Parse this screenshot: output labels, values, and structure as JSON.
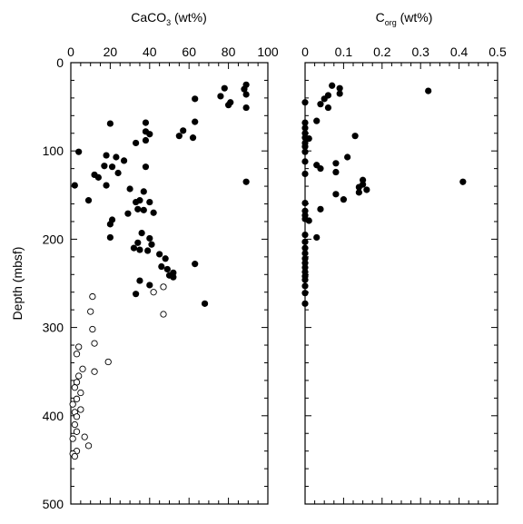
{
  "chart_data": [
    {
      "type": "scatter",
      "title_main": "CaCO",
      "title_sub": "3",
      "title_tail": " (wt%)",
      "ylabel": "Depth (mbsf)",
      "xlim": [
        0,
        100
      ],
      "ylim": [
        0,
        500
      ],
      "x_ticks": [
        "0",
        "20",
        "40",
        "60",
        "80",
        "100"
      ],
      "y_ticks": [
        "0",
        "100",
        "200",
        "300",
        "400",
        "500"
      ],
      "series": [
        {
          "marker": "filled",
          "points": [
            [
              89,
              25
            ],
            [
              78,
              29
            ],
            [
              88,
              30
            ],
            [
              76,
              38
            ],
            [
              89,
              36
            ],
            [
              81,
              45
            ],
            [
              63,
              41
            ],
            [
              80,
              48
            ],
            [
              89,
              51
            ],
            [
              63,
              67
            ],
            [
              38,
              68
            ],
            [
              20,
              69
            ],
            [
              57,
              77
            ],
            [
              38,
              78
            ],
            [
              40,
              81
            ],
            [
              55,
              83
            ],
            [
              62,
              85
            ],
            [
              38,
              88
            ],
            [
              33,
              91
            ],
            [
              4,
              101
            ],
            [
              18,
              105
            ],
            [
              23,
              107
            ],
            [
              21,
              118
            ],
            [
              17,
              117
            ],
            [
              27,
              111
            ],
            [
              24,
              125
            ],
            [
              38,
              118
            ],
            [
              12,
              127
            ],
            [
              14,
              130
            ],
            [
              18,
              139
            ],
            [
              2,
              139
            ],
            [
              89,
              135
            ],
            [
              30,
              143
            ],
            [
              37,
              146
            ],
            [
              9,
              156
            ],
            [
              35,
              156
            ],
            [
              33,
              158
            ],
            [
              40,
              158
            ],
            [
              34,
              166
            ],
            [
              37,
              167
            ],
            [
              42,
              170
            ],
            [
              29,
              171
            ],
            [
              21,
              178
            ],
            [
              20,
              183
            ],
            [
              40,
              199
            ],
            [
              20,
              198
            ],
            [
              36,
              193
            ],
            [
              34,
              204
            ],
            [
              32,
              210
            ],
            [
              41,
              206
            ],
            [
              35,
              212
            ],
            [
              39,
              213
            ],
            [
              45,
              217
            ],
            [
              48,
              222
            ],
            [
              63,
              228
            ],
            [
              46,
              231
            ],
            [
              49,
              234
            ],
            [
              52,
              238
            ],
            [
              50,
              241
            ],
            [
              52,
              243
            ],
            [
              35,
              247
            ],
            [
              40,
              252
            ],
            [
              33,
              262
            ],
            [
              68,
              273
            ]
          ]
        },
        {
          "marker": "open",
          "points": [
            [
              47,
              254
            ],
            [
              42,
              260
            ],
            [
              11,
              265
            ],
            [
              10,
              282
            ],
            [
              47,
              285
            ],
            [
              11,
              302
            ],
            [
              12,
              318
            ],
            [
              4,
              322
            ],
            [
              3,
              330
            ],
            [
              19,
              339
            ],
            [
              6,
              347
            ],
            [
              12,
              350
            ],
            [
              4,
              355
            ],
            [
              3,
              362
            ],
            [
              2,
              368
            ],
            [
              5,
              374
            ],
            [
              3,
              381
            ],
            [
              1,
              387
            ],
            [
              5,
              393
            ],
            [
              2,
              396
            ],
            [
              3,
              401
            ],
            [
              2,
              410
            ],
            [
              3,
              418
            ],
            [
              7,
              424
            ],
            [
              1,
              426
            ],
            [
              9,
              434
            ],
            [
              3,
              440
            ],
            [
              1,
              443
            ],
            [
              2,
              446
            ]
          ]
        }
      ]
    },
    {
      "type": "scatter",
      "title_main": "C",
      "title_sub": "org",
      "title_tail": " (wt%)",
      "xlim": [
        0,
        0.5
      ],
      "ylim": [
        0,
        500
      ],
      "x_ticks": [
        "0",
        "0.1",
        "0.2",
        "0.3",
        "0.4",
        "0.5"
      ],
      "series": [
        {
          "marker": "filled",
          "points": [
            [
              0.07,
              26
            ],
            [
              0.09,
              29
            ],
            [
              0.32,
              32
            ],
            [
              0.09,
              35
            ],
            [
              0.06,
              37
            ],
            [
              0.05,
              41
            ],
            [
              0.04,
              47
            ],
            [
              0.0,
              45
            ],
            [
              0.06,
              51
            ],
            [
              0.03,
              66
            ],
            [
              0.0,
              68
            ],
            [
              0.0,
              74
            ],
            [
              0.0,
              80
            ],
            [
              0.13,
              83
            ],
            [
              0.0,
              85
            ],
            [
              0.01,
              86
            ],
            [
              0.0,
              91
            ],
            [
              0.0,
              95
            ],
            [
              0.0,
              101
            ],
            [
              0.11,
              107
            ],
            [
              0.0,
              112
            ],
            [
              0.03,
              116
            ],
            [
              0.08,
              114
            ],
            [
              0.04,
              120
            ],
            [
              0.08,
              124
            ],
            [
              0.0,
              126
            ],
            [
              0.41,
              135
            ],
            [
              0.15,
              133
            ],
            [
              0.15,
              138
            ],
            [
              0.14,
              141
            ],
            [
              0.16,
              144
            ],
            [
              0.14,
              147
            ],
            [
              0.08,
              149
            ],
            [
              0.1,
              155
            ],
            [
              0.0,
              159
            ],
            [
              0.04,
              166
            ],
            [
              0.0,
              168
            ],
            [
              0.0,
              173
            ],
            [
              0.0,
              177
            ],
            [
              0.01,
              179
            ],
            [
              0.0,
              195
            ],
            [
              0.03,
              198
            ],
            [
              0.0,
              203
            ],
            [
              0.0,
              210
            ],
            [
              0.0,
              216
            ],
            [
              0.0,
              222
            ],
            [
              0.0,
              227
            ],
            [
              0.0,
              232
            ],
            [
              0.0,
              237
            ],
            [
              0.0,
              242
            ],
            [
              0.0,
              246
            ],
            [
              0.0,
              253
            ],
            [
              0.0,
              261
            ],
            [
              0.0,
              273
            ]
          ]
        }
      ]
    }
  ]
}
